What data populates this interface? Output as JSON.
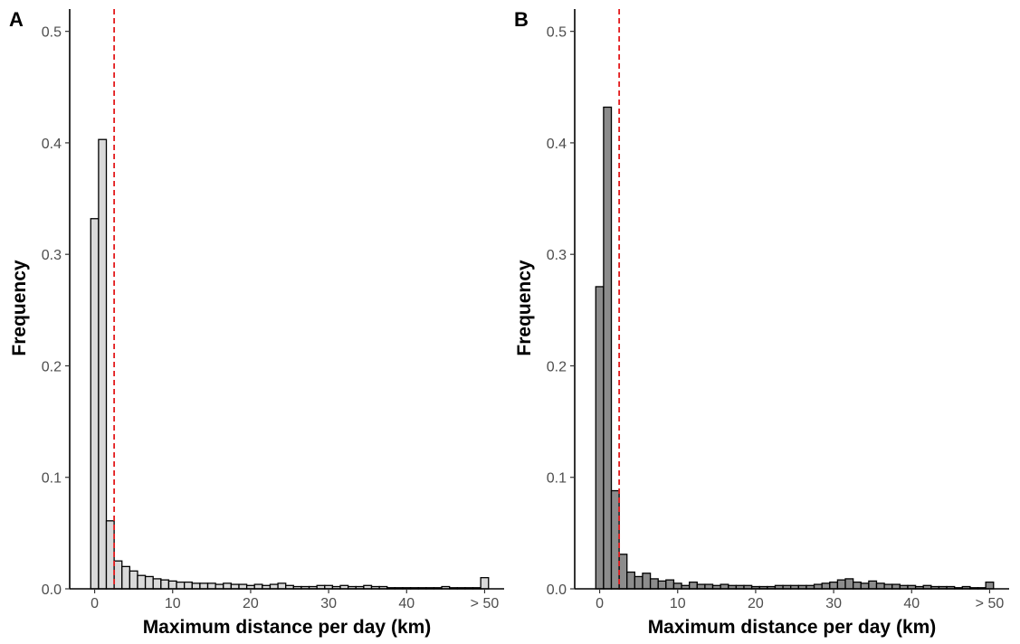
{
  "chart_data": [
    {
      "type": "bar",
      "panel_label": "A",
      "xlabel": "Maximum distance per day (km)",
      "ylabel": "Frequency",
      "bar_color": "#d9d9d9",
      "reference_line": {
        "x": 2.5,
        "color": "#e31a1c",
        "style": "dashed"
      },
      "xlim": [
        -3.2,
        52.5
      ],
      "ylim": [
        0,
        0.52
      ],
      "x_ticks": [
        {
          "value": 0,
          "label": "0"
        },
        {
          "value": 10,
          "label": "10"
        },
        {
          "value": 20,
          "label": "20"
        },
        {
          "value": 30,
          "label": "30"
        },
        {
          "value": 40,
          "label": "40"
        },
        {
          "value": 50,
          "label": "> 50"
        }
      ],
      "y_ticks": [
        {
          "value": 0,
          "label": "0.0"
        },
        {
          "value": 0.1,
          "label": "0.1"
        },
        {
          "value": 0.2,
          "label": "0.2"
        },
        {
          "value": 0.3,
          "label": "0.3"
        },
        {
          "value": 0.4,
          "label": "0.4"
        },
        {
          "value": 0.5,
          "label": "0.5"
        }
      ],
      "bin_width": 1,
      "x": [
        0,
        1,
        2,
        3,
        4,
        5,
        6,
        7,
        8,
        9,
        10,
        11,
        12,
        13,
        14,
        15,
        16,
        17,
        18,
        19,
        20,
        21,
        22,
        23,
        24,
        25,
        26,
        27,
        28,
        29,
        30,
        31,
        32,
        33,
        34,
        35,
        36,
        37,
        38,
        39,
        40,
        41,
        42,
        43,
        44,
        45,
        46,
        47,
        48,
        49,
        50
      ],
      "values": [
        0.332,
        0.403,
        0.061,
        0.025,
        0.02,
        0.016,
        0.012,
        0.011,
        0.009,
        0.008,
        0.007,
        0.006,
        0.006,
        0.005,
        0.005,
        0.005,
        0.004,
        0.005,
        0.004,
        0.004,
        0.003,
        0.004,
        0.003,
        0.004,
        0.005,
        0.003,
        0.002,
        0.002,
        0.002,
        0.003,
        0.003,
        0.002,
        0.003,
        0.002,
        0.002,
        0.003,
        0.002,
        0.002,
        0.001,
        0.001,
        0.001,
        0.001,
        0.001,
        0.001,
        0.001,
        0.002,
        0.001,
        0.001,
        0.001,
        0.001,
        0.01
      ]
    },
    {
      "type": "bar",
      "panel_label": "B",
      "xlabel": "Maximum distance per day (km)",
      "ylabel": "Frequency",
      "bar_color": "#8c8c8c",
      "reference_line": {
        "x": 2.5,
        "color": "#e31a1c",
        "style": "dashed"
      },
      "xlim": [
        -3.2,
        52.5
      ],
      "ylim": [
        0,
        0.52
      ],
      "x_ticks": [
        {
          "value": 0,
          "label": "0"
        },
        {
          "value": 10,
          "label": "10"
        },
        {
          "value": 20,
          "label": "20"
        },
        {
          "value": 30,
          "label": "30"
        },
        {
          "value": 40,
          "label": "40"
        },
        {
          "value": 50,
          "label": "> 50"
        }
      ],
      "y_ticks": [
        {
          "value": 0,
          "label": "0.0"
        },
        {
          "value": 0.1,
          "label": "0.1"
        },
        {
          "value": 0.2,
          "label": "0.2"
        },
        {
          "value": 0.3,
          "label": "0.3"
        },
        {
          "value": 0.4,
          "label": "0.4"
        },
        {
          "value": 0.5,
          "label": "0.5"
        }
      ],
      "bin_width": 1,
      "x": [
        0,
        1,
        2,
        3,
        4,
        5,
        6,
        7,
        8,
        9,
        10,
        11,
        12,
        13,
        14,
        15,
        16,
        17,
        18,
        19,
        20,
        21,
        22,
        23,
        24,
        25,
        26,
        27,
        28,
        29,
        30,
        31,
        32,
        33,
        34,
        35,
        36,
        37,
        38,
        39,
        40,
        41,
        42,
        43,
        44,
        45,
        46,
        47,
        48,
        49,
        50
      ],
      "values": [
        0.271,
        0.432,
        0.088,
        0.031,
        0.015,
        0.011,
        0.014,
        0.009,
        0.007,
        0.008,
        0.005,
        0.003,
        0.006,
        0.004,
        0.004,
        0.003,
        0.004,
        0.003,
        0.003,
        0.003,
        0.002,
        0.002,
        0.002,
        0.003,
        0.003,
        0.003,
        0.003,
        0.003,
        0.004,
        0.005,
        0.006,
        0.008,
        0.009,
        0.006,
        0.005,
        0.007,
        0.005,
        0.004,
        0.004,
        0.003,
        0.003,
        0.002,
        0.003,
        0.002,
        0.002,
        0.002,
        0.001,
        0.002,
        0.001,
        0.001,
        0.006
      ]
    }
  ]
}
